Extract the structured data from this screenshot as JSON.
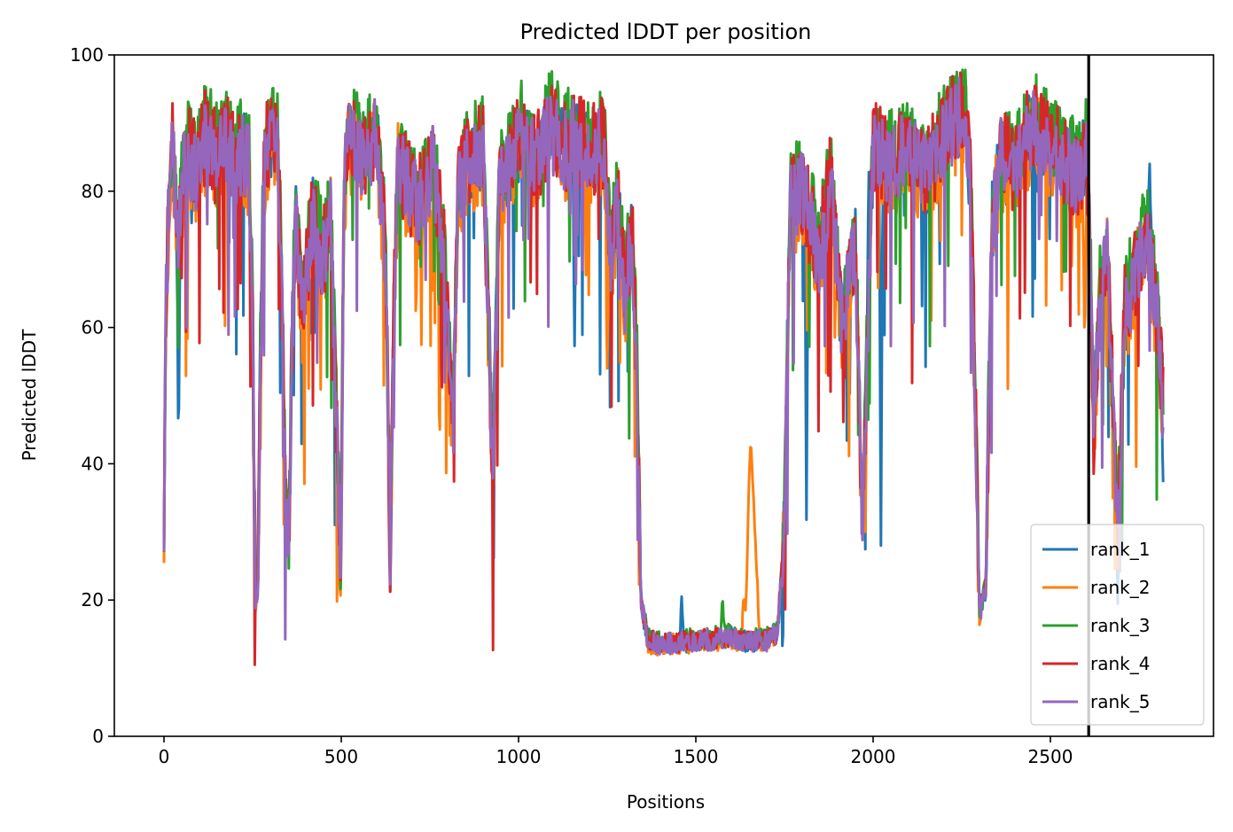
{
  "chart_data": {
    "type": "line",
    "title": "Predicted lDDT per position",
    "xlabel": "Positions",
    "ylabel": "Predicted lDDT",
    "xlim": [
      -140,
      2960
    ],
    "ylim": [
      0,
      100
    ],
    "xticks": [
      0,
      500,
      1000,
      1500,
      2000,
      2500
    ],
    "yticks": [
      0,
      20,
      40,
      60,
      80,
      100
    ],
    "legend_position": "lower-right",
    "vertical_line": {
      "x": 2608,
      "color": "#000000"
    },
    "profile": [
      [
        0,
        30
      ],
      [
        5,
        62
      ],
      [
        15,
        80
      ],
      [
        25,
        86
      ],
      [
        40,
        72
      ],
      [
        60,
        86
      ],
      [
        90,
        83
      ],
      [
        120,
        88
      ],
      [
        150,
        85
      ],
      [
        180,
        87
      ],
      [
        200,
        83
      ],
      [
        220,
        86
      ],
      [
        240,
        84
      ],
      [
        250,
        60
      ],
      [
        258,
        20
      ],
      [
        265,
        22
      ],
      [
        272,
        55
      ],
      [
        282,
        84
      ],
      [
        300,
        88
      ],
      [
        320,
        86
      ],
      [
        330,
        70
      ],
      [
        345,
        30
      ],
      [
        352,
        28
      ],
      [
        362,
        60
      ],
      [
        372,
        75
      ],
      [
        390,
        62
      ],
      [
        420,
        76
      ],
      [
        450,
        70
      ],
      [
        470,
        76
      ],
      [
        490,
        40
      ],
      [
        498,
        22
      ],
      [
        508,
        80
      ],
      [
        520,
        88
      ],
      [
        560,
        85
      ],
      [
        600,
        88
      ],
      [
        625,
        70
      ],
      [
        638,
        25
      ],
      [
        648,
        60
      ],
      [
        660,
        84
      ],
      [
        690,
        80
      ],
      [
        720,
        78
      ],
      [
        760,
        84
      ],
      [
        790,
        70
      ],
      [
        815,
        45
      ],
      [
        830,
        80
      ],
      [
        860,
        84
      ],
      [
        900,
        86
      ],
      [
        928,
        38
      ],
      [
        945,
        80
      ],
      [
        980,
        84
      ],
      [
        1010,
        88
      ],
      [
        1050,
        84
      ],
      [
        1090,
        90
      ],
      [
        1130,
        86
      ],
      [
        1160,
        88
      ],
      [
        1200,
        85
      ],
      [
        1240,
        87
      ],
      [
        1260,
        70
      ],
      [
        1280,
        78
      ],
      [
        1300,
        65
      ],
      [
        1320,
        74
      ],
      [
        1333,
        55
      ],
      [
        1345,
        20
      ],
      [
        1365,
        14
      ],
      [
        1400,
        13.5
      ],
      [
        1500,
        14
      ],
      [
        1600,
        14.5
      ],
      [
        1640,
        14
      ],
      [
        1700,
        14
      ],
      [
        1730,
        15
      ],
      [
        1750,
        30
      ],
      [
        1765,
        78
      ],
      [
        1800,
        80
      ],
      [
        1850,
        70
      ],
      [
        1880,
        82
      ],
      [
        1910,
        60
      ],
      [
        1950,
        72
      ],
      [
        1970,
        28
      ],
      [
        1985,
        60
      ],
      [
        2000,
        86
      ],
      [
        2050,
        84
      ],
      [
        2100,
        86
      ],
      [
        2150,
        82
      ],
      [
        2200,
        88
      ],
      [
        2230,
        90
      ],
      [
        2260,
        92
      ],
      [
        2275,
        80
      ],
      [
        2290,
        45
      ],
      [
        2300,
        18
      ],
      [
        2318,
        22
      ],
      [
        2335,
        75
      ],
      [
        2360,
        85
      ],
      [
        2400,
        82
      ],
      [
        2450,
        90
      ],
      [
        2500,
        86
      ],
      [
        2540,
        84
      ],
      [
        2580,
        82
      ],
      [
        2600,
        86
      ],
      [
        2608,
        80
      ],
      [
        2622,
        45
      ],
      [
        2640,
        64
      ],
      [
        2660,
        70
      ],
      [
        2690,
        30
      ],
      [
        2710,
        62
      ],
      [
        2740,
        68
      ],
      [
        2770,
        74
      ],
      [
        2800,
        62
      ],
      [
        2818,
        48
      ]
    ],
    "features": [
      [
        1655,
        43.5,
        "rank_2",
        25
      ],
      [
        1460,
        20.5,
        "rank_1",
        5
      ],
      [
        1575,
        20.7,
        "rank_3",
        5
      ],
      [
        1640,
        18.5,
        "rank_2",
        8
      ],
      [
        1812,
        31.8,
        "rank_1",
        4
      ],
      [
        1988,
        82.8,
        "rank_1",
        4
      ],
      [
        1978,
        30,
        "rank_2",
        4
      ],
      [
        2022,
        28,
        "rank_1",
        4
      ],
      [
        41,
        41,
        "rank_1",
        4
      ],
      [
        1158,
        57.3,
        "rank_1",
        4
      ],
      [
        2560,
        69,
        "rank_2",
        4
      ],
      [
        2597,
        57,
        "rank_2",
        6
      ],
      [
        2780,
        84,
        "rank_1",
        6
      ],
      [
        2818,
        37.3,
        "rank_1",
        4
      ],
      [
        372,
        80.7,
        "rank_1",
        4
      ],
      [
        1250,
        54,
        "rank_2",
        4
      ],
      [
        2690,
        19.5,
        "rank_1",
        4
      ]
    ],
    "series": [
      {
        "name": "rank_1",
        "color": "#1f77b4",
        "offset": 0.0,
        "noise": 6,
        "seed": 11
      },
      {
        "name": "rank_2",
        "color": "#ff7f0e",
        "offset": -1.0,
        "noise": 7,
        "seed": 23
      },
      {
        "name": "rank_3",
        "color": "#2ca02c",
        "offset": 2.5,
        "noise": 6,
        "seed": 37
      },
      {
        "name": "rank_4",
        "color": "#d62728",
        "offset": 0.5,
        "noise": 7,
        "seed": 51
      },
      {
        "name": "rank_5",
        "color": "#9467bd",
        "offset": 0.0,
        "noise": 6,
        "seed": 71
      }
    ]
  }
}
